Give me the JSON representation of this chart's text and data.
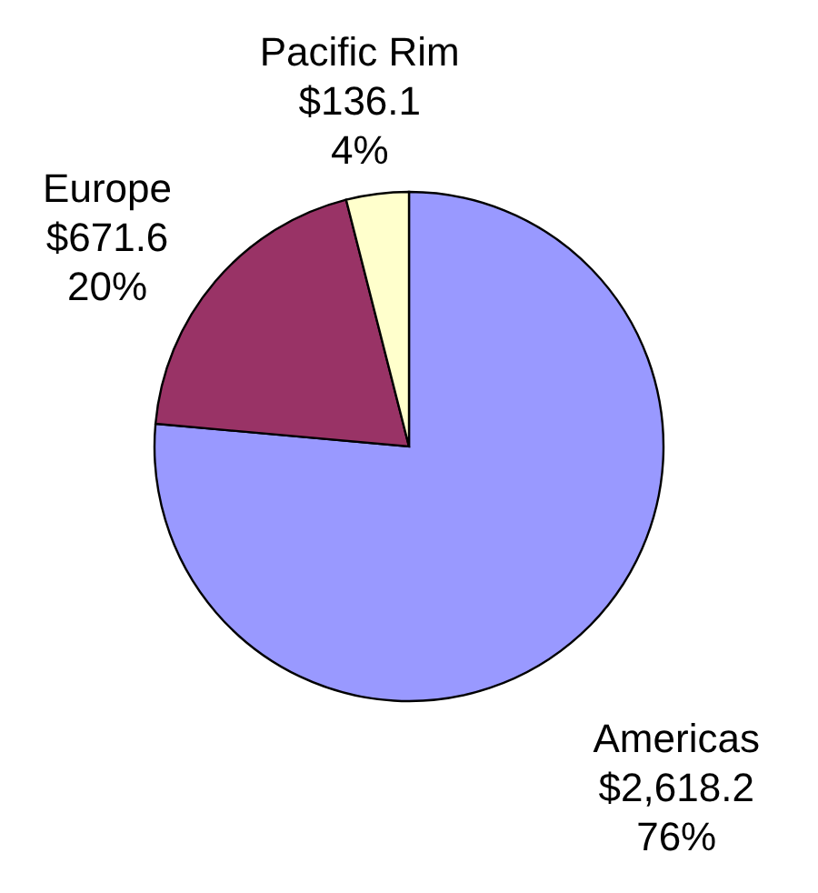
{
  "chart_data": {
    "type": "pie",
    "categories": [
      "Americas",
      "Europe",
      "Pacific Rim"
    ],
    "values": [
      2618.2,
      671.6,
      136.1
    ],
    "colors": [
      "#9999ff",
      "#993366",
      "#ffffcc"
    ],
    "value_labels": [
      "$2,618.2\n76%",
      "$671.6\n20%",
      "$136.1\n4%"
    ]
  }
}
